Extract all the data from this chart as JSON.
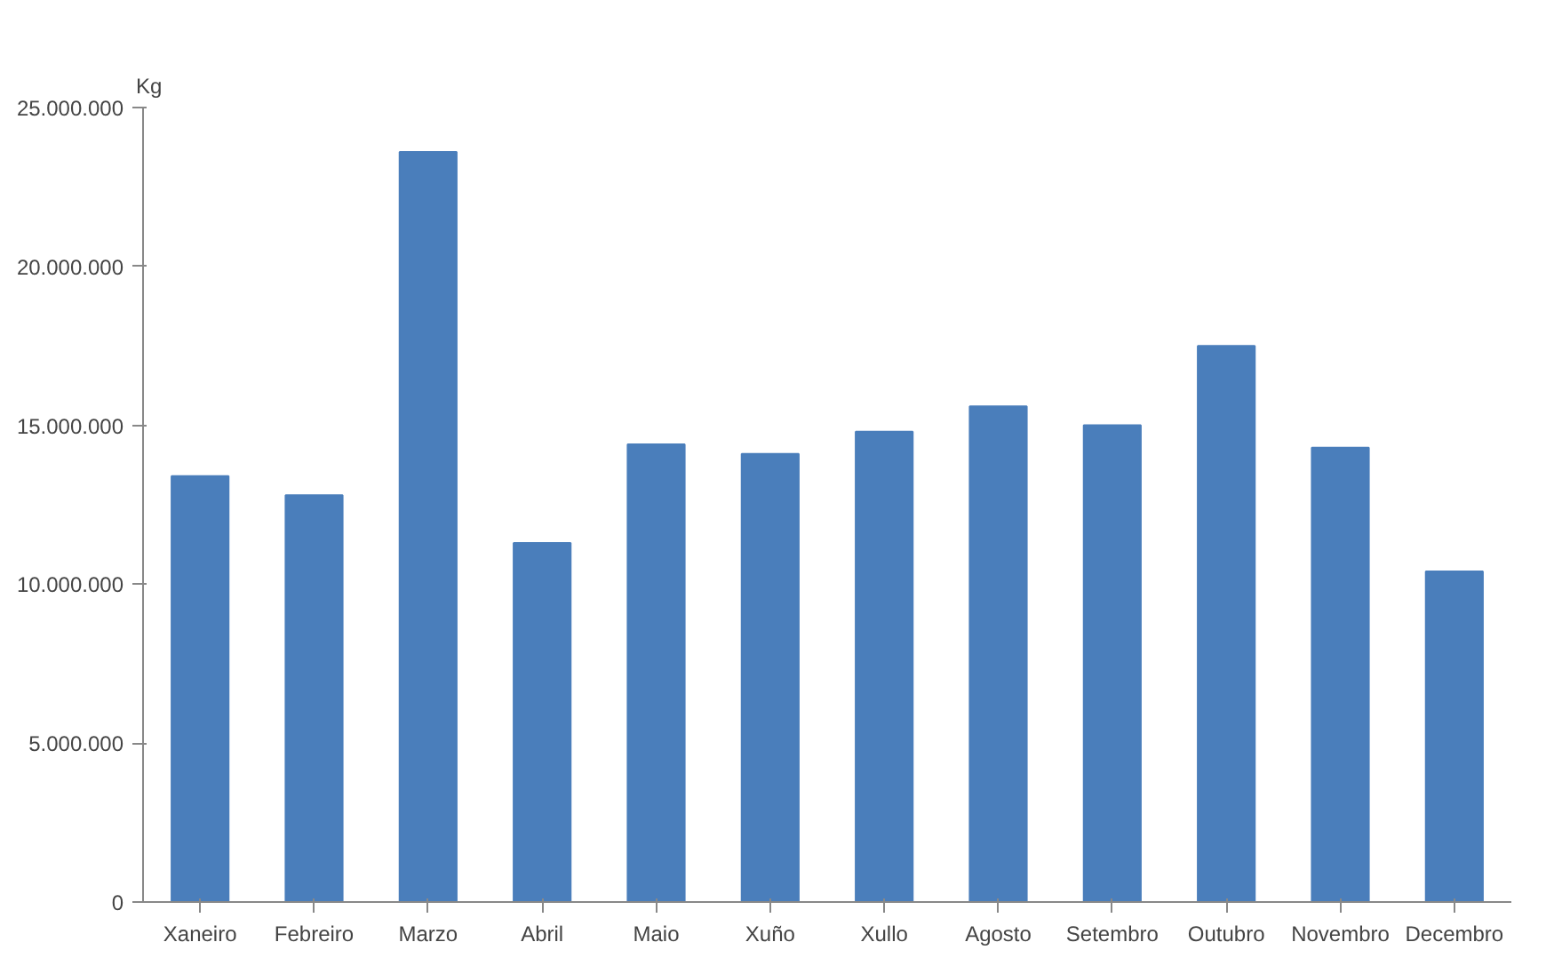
{
  "chart_data": {
    "type": "bar",
    "ylabel": "Kg",
    "categories": [
      "Xaneiro",
      "Febreiro",
      "Marzo",
      "Abril",
      "Maio",
      "Xuño",
      "Xullo",
      "Agosto",
      "Setembro",
      "Outubro",
      "Novembro",
      "Decembro"
    ],
    "values": [
      13400000,
      12800000,
      23600000,
      11300000,
      14400000,
      14100000,
      14800000,
      15600000,
      15000000,
      17500000,
      14300000,
      10400000
    ],
    "color": "#4a7ebb",
    "ylim": [
      0,
      25000000
    ],
    "yticks": [
      {
        "value": 0,
        "label": "0"
      },
      {
        "value": 5000000,
        "label": "5.000.000"
      },
      {
        "value": 10000000,
        "label": "10.000.000"
      },
      {
        "value": 15000000,
        "label": "15.000.000"
      },
      {
        "value": 20000000,
        "label": "20.000.000"
      },
      {
        "value": 25000000,
        "label": "25.000.000"
      }
    ],
    "grid": false
  }
}
